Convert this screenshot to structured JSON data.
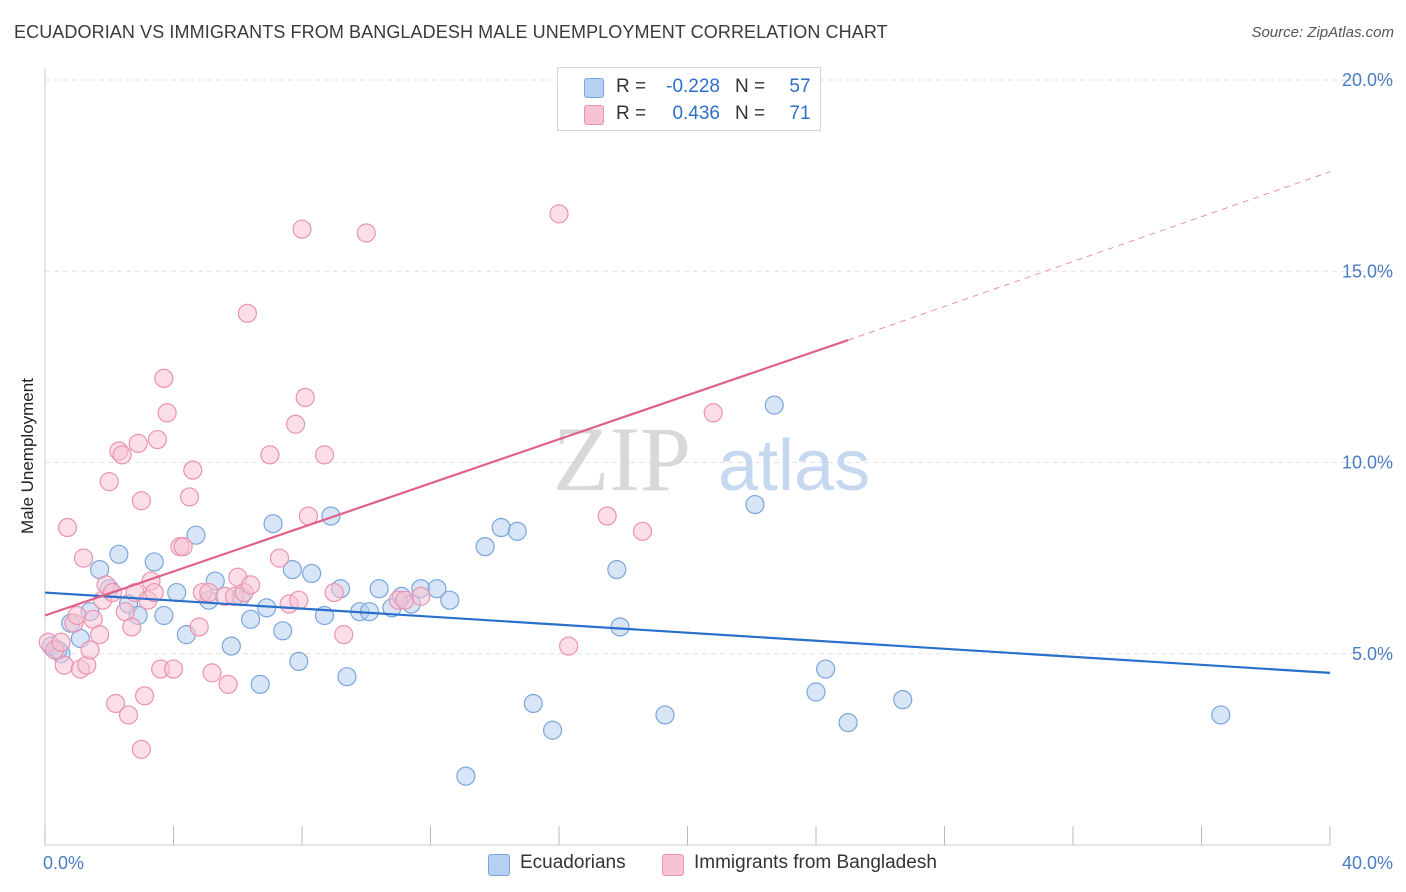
{
  "title": "ECUADORIAN VS IMMIGRANTS FROM BANGLADESH MALE UNEMPLOYMENT CORRELATION CHART",
  "source": "Source: ZipAtlas.com",
  "watermark": {
    "zip": "ZIP",
    "atlas": "atlas"
  },
  "colors": {
    "blue_fill": "#b7d0f1",
    "blue_stroke": "#7aa6dc",
    "blue_line": "#2a6fcb",
    "pink_fill": "#f7c3d3",
    "pink_stroke": "#eb93b0",
    "pink_line": "#e0608a",
    "grid": "#e2e2e2",
    "tick_text": "#4a7cc4"
  },
  "legend": {
    "rows": [
      {
        "r_label": "R =",
        "r_value": "-0.228",
        "n_label": "N =",
        "n_value": "57"
      },
      {
        "r_label": "R =",
        "r_value": "0.436",
        "n_label": "N =",
        "n_value": "71"
      }
    ]
  },
  "chart_data": {
    "type": "scatter",
    "title": "ECUADORIAN VS IMMIGRANTS FROM BANGLADESH MALE UNEMPLOYMENT CORRELATION CHART",
    "xlabel": "",
    "ylabel": "Male Unemployment",
    "xlim": [
      0,
      40
    ],
    "ylim": [
      0,
      20
    ],
    "x_tick_labels": [
      "0.0%",
      "40.0%"
    ],
    "y_ticks": [
      5,
      10,
      15,
      20
    ],
    "y_tick_labels": [
      "5.0%",
      "10.0%",
      "15.0%",
      "20.0%"
    ],
    "grid": true,
    "legend_position": "bottom",
    "series": [
      {
        "name": "Ecuadorians",
        "color": "#b7d0f1",
        "trend": {
          "x": [
            0,
            40
          ],
          "y": [
            6.6,
            4.5
          ],
          "dashed_to": null
        },
        "points": [
          [
            0.2,
            5.2
          ],
          [
            0.5,
            5.0
          ],
          [
            0.8,
            5.8
          ],
          [
            1.1,
            5.4
          ],
          [
            1.4,
            6.1
          ],
          [
            1.7,
            7.2
          ],
          [
            2.0,
            6.7
          ],
          [
            2.3,
            7.6
          ],
          [
            2.6,
            6.3
          ],
          [
            2.9,
            6.0
          ],
          [
            3.4,
            7.4
          ],
          [
            3.7,
            6.0
          ],
          [
            4.1,
            6.6
          ],
          [
            4.4,
            5.5
          ],
          [
            4.7,
            8.1
          ],
          [
            5.1,
            6.4
          ],
          [
            5.3,
            6.9
          ],
          [
            5.8,
            5.2
          ],
          [
            6.1,
            6.5
          ],
          [
            6.4,
            5.9
          ],
          [
            6.7,
            4.2
          ],
          [
            6.9,
            6.2
          ],
          [
            7.1,
            8.4
          ],
          [
            7.4,
            5.6
          ],
          [
            7.7,
            7.2
          ],
          [
            7.9,
            4.8
          ],
          [
            8.3,
            7.1
          ],
          [
            8.7,
            6.0
          ],
          [
            8.9,
            8.6
          ],
          [
            9.2,
            6.7
          ],
          [
            9.4,
            4.4
          ],
          [
            9.8,
            6.1
          ],
          [
            10.1,
            6.1
          ],
          [
            10.4,
            6.7
          ],
          [
            10.8,
            6.2
          ],
          [
            11.1,
            6.5
          ],
          [
            11.4,
            6.3
          ],
          [
            11.7,
            6.7
          ],
          [
            12.2,
            6.7
          ],
          [
            12.6,
            6.4
          ],
          [
            13.1,
            1.8
          ],
          [
            13.7,
            7.8
          ],
          [
            14.2,
            8.3
          ],
          [
            14.7,
            8.2
          ],
          [
            15.2,
            3.7
          ],
          [
            15.8,
            3.0
          ],
          [
            17.8,
            7.2
          ],
          [
            17.9,
            5.7
          ],
          [
            19.3,
            3.4
          ],
          [
            22.1,
            8.9
          ],
          [
            22.7,
            11.5
          ],
          [
            24.0,
            4.0
          ],
          [
            24.3,
            4.6
          ],
          [
            25.0,
            3.2
          ],
          [
            26.7,
            3.8
          ],
          [
            36.6,
            3.4
          ],
          [
            0.4,
            5.1
          ]
        ]
      },
      {
        "name": "Immigrants from Bangladesh",
        "color": "#f7c3d3",
        "trend": {
          "x": [
            0,
            25
          ],
          "y": [
            6.0,
            13.2
          ],
          "dashed_to": [
            40,
            17.6
          ]
        },
        "points": [
          [
            0.1,
            5.3
          ],
          [
            0.3,
            5.1
          ],
          [
            0.5,
            5.3
          ],
          [
            0.6,
            4.7
          ],
          [
            0.7,
            8.3
          ],
          [
            0.9,
            5.8
          ],
          [
            1.0,
            6.0
          ],
          [
            1.1,
            4.6
          ],
          [
            1.2,
            7.5
          ],
          [
            1.3,
            4.7
          ],
          [
            1.4,
            5.1
          ],
          [
            1.5,
            5.9
          ],
          [
            1.7,
            5.5
          ],
          [
            1.8,
            6.4
          ],
          [
            1.9,
            6.8
          ],
          [
            2.0,
            9.5
          ],
          [
            2.1,
            6.6
          ],
          [
            2.2,
            3.7
          ],
          [
            2.3,
            10.3
          ],
          [
            2.4,
            10.2
          ],
          [
            2.5,
            6.1
          ],
          [
            2.6,
            3.4
          ],
          [
            2.7,
            5.7
          ],
          [
            2.8,
            6.6
          ],
          [
            2.9,
            10.5
          ],
          [
            3.0,
            9.0
          ],
          [
            3.0,
            2.5
          ],
          [
            3.1,
            3.9
          ],
          [
            3.2,
            6.4
          ],
          [
            3.3,
            6.9
          ],
          [
            3.4,
            6.6
          ],
          [
            3.5,
            10.6
          ],
          [
            3.6,
            4.6
          ],
          [
            3.7,
            12.2
          ],
          [
            3.8,
            11.3
          ],
          [
            4.0,
            4.6
          ],
          [
            4.2,
            7.8
          ],
          [
            4.3,
            7.8
          ],
          [
            4.5,
            9.1
          ],
          [
            4.6,
            9.8
          ],
          [
            4.8,
            5.7
          ],
          [
            4.9,
            6.6
          ],
          [
            5.1,
            6.6
          ],
          [
            5.2,
            4.5
          ],
          [
            5.6,
            6.5
          ],
          [
            5.7,
            4.2
          ],
          [
            5.9,
            6.5
          ],
          [
            6.0,
            7.0
          ],
          [
            6.2,
            6.6
          ],
          [
            6.3,
            13.9
          ],
          [
            6.4,
            6.8
          ],
          [
            7.0,
            10.2
          ],
          [
            7.3,
            7.5
          ],
          [
            7.6,
            6.3
          ],
          [
            7.8,
            11.0
          ],
          [
            7.9,
            6.4
          ],
          [
            8.0,
            16.1
          ],
          [
            8.1,
            11.7
          ],
          [
            8.2,
            8.6
          ],
          [
            8.7,
            10.2
          ],
          [
            9.0,
            6.6
          ],
          [
            9.3,
            5.5
          ],
          [
            10.0,
            16.0
          ],
          [
            11.0,
            6.4
          ],
          [
            11.2,
            6.4
          ],
          [
            11.7,
            6.5
          ],
          [
            16.0,
            16.5
          ],
          [
            16.3,
            5.2
          ],
          [
            17.5,
            8.6
          ],
          [
            18.6,
            8.2
          ],
          [
            20.8,
            11.3
          ]
        ]
      }
    ]
  }
}
